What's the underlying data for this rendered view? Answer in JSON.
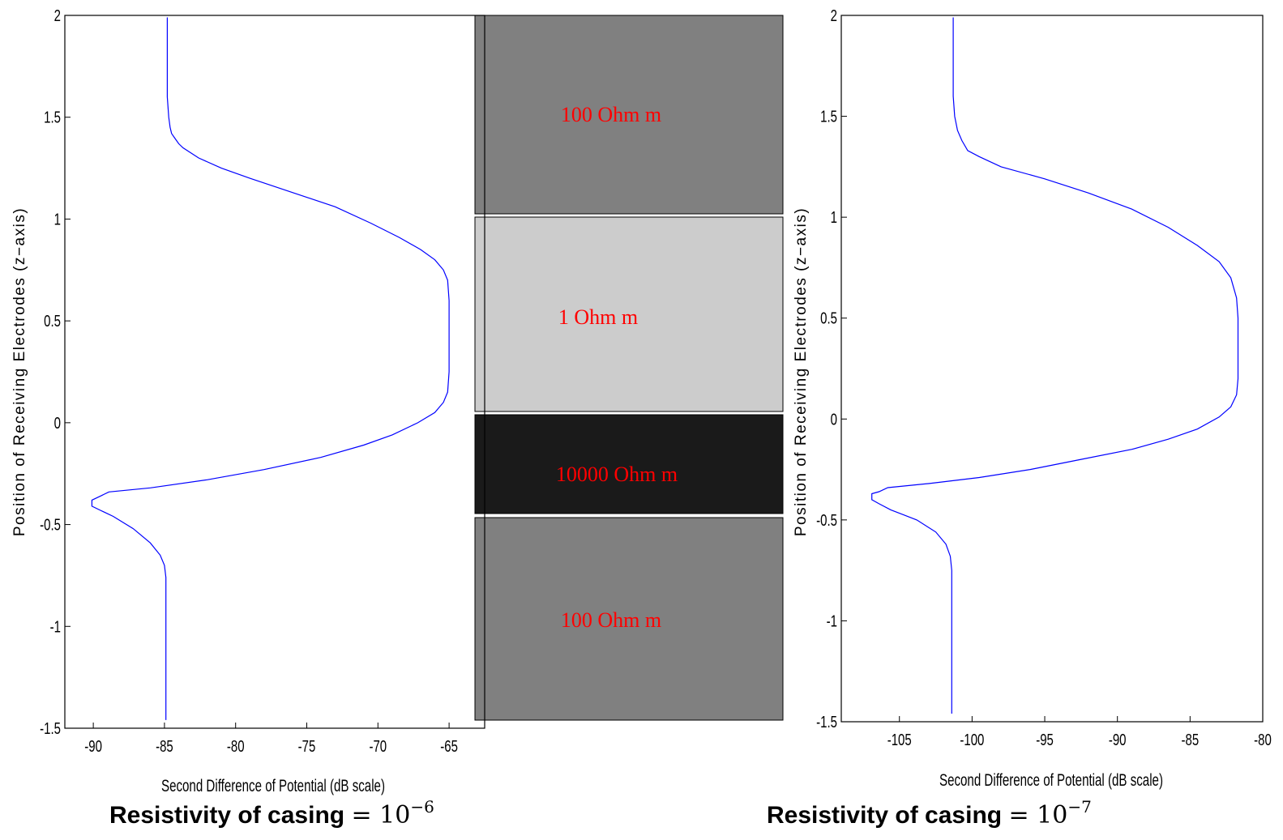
{
  "chart_data": [
    {
      "type": "line",
      "xlabel": "Second Difference of Potential (dB scale)",
      "ylabel": "Position of Receiving Electrodes (z−axis)",
      "xlim": [
        -92,
        -62.5
      ],
      "ylim": [
        -1.5,
        2
      ],
      "xticks": [
        "-90",
        "-85",
        "-80",
        "-75",
        "-70",
        "-65"
      ],
      "yticks": [
        "2",
        "1.5",
        "1",
        "0.5",
        "0",
        "-0.5",
        "-1",
        "-1.5"
      ],
      "grid": false,
      "series": [
        {
          "color": "#0000ff",
          "x": [
            -84.8,
            -84.8,
            -84.7,
            -84.6,
            -84.5,
            -84.3,
            -84.0,
            -83.7,
            -82.6,
            -81.0,
            -79.0,
            -76.0,
            -73.0,
            -70.5,
            -68.5,
            -67.0,
            -66.0,
            -65.4,
            -65.1,
            -65.0,
            -65.0,
            -65.0,
            -65.0,
            -65.1,
            -65.4,
            -66.0,
            -67.2,
            -69.0,
            -71.0,
            -74.0,
            -78.0,
            -82.0,
            -86.0,
            -88.9,
            -89.5,
            -90.1,
            -90.1,
            -89.5,
            -88.6,
            -87.2,
            -86.0,
            -85.3,
            -85.0,
            -84.9,
            -84.9,
            -84.9
          ],
          "y": [
            1.99,
            1.6,
            1.5,
            1.45,
            1.42,
            1.4,
            1.37,
            1.35,
            1.3,
            1.25,
            1.2,
            1.13,
            1.06,
            0.98,
            0.91,
            0.85,
            0.8,
            0.75,
            0.7,
            0.6,
            0.5,
            0.4,
            0.25,
            0.15,
            0.1,
            0.05,
            0.0,
            -0.06,
            -0.11,
            -0.17,
            -0.23,
            -0.28,
            -0.32,
            -0.34,
            -0.36,
            -0.38,
            -0.41,
            -0.43,
            -0.46,
            -0.52,
            -0.59,
            -0.65,
            -0.7,
            -0.76,
            -1.0,
            -1.46
          ]
        }
      ],
      "caption": "Resistivity of casing",
      "caption_math": "= 10",
      "caption_exp": "−6"
    },
    {
      "type": "line",
      "xlabel": "Second Difference of Potential (dB scale)",
      "ylabel": "Position of Receiving Electrodes (z−axis)",
      "xlim": [
        -109,
        -80
      ],
      "ylim": [
        -1.5,
        2
      ],
      "xticks": [
        "-105",
        "-100",
        "-95",
        "-90",
        "-85",
        "-80"
      ],
      "yticks": [
        "2",
        "1.5",
        "1",
        "0.5",
        "0",
        "-0.5",
        "-1",
        "-1.5"
      ],
      "grid": false,
      "series": [
        {
          "color": "#0000ff",
          "x": [
            -101.3,
            -101.3,
            -101.2,
            -101.0,
            -100.7,
            -100.3,
            -99.5,
            -98.0,
            -95.0,
            -92.0,
            -89.0,
            -86.5,
            -84.5,
            -83.0,
            -82.2,
            -81.8,
            -81.7,
            -81.7,
            -81.7,
            -81.8,
            -82.2,
            -83.0,
            -84.5,
            -86.5,
            -89.0,
            -92.5,
            -96.0,
            -99.5,
            -103.0,
            -105.8,
            -106.4,
            -106.9,
            -106.9,
            -106.4,
            -105.6,
            -103.8,
            -102.5,
            -101.8,
            -101.5,
            -101.4,
            -101.4,
            -101.4
          ],
          "y": [
            1.99,
            1.6,
            1.5,
            1.43,
            1.38,
            1.33,
            1.3,
            1.25,
            1.19,
            1.12,
            1.04,
            0.95,
            0.86,
            0.78,
            0.7,
            0.6,
            0.5,
            0.3,
            0.2,
            0.12,
            0.06,
            0.01,
            -0.05,
            -0.1,
            -0.15,
            -0.2,
            -0.25,
            -0.29,
            -0.32,
            -0.34,
            -0.36,
            -0.37,
            -0.4,
            -0.42,
            -0.45,
            -0.5,
            -0.56,
            -0.62,
            -0.68,
            -0.75,
            -1.0,
            -1.46
          ]
        }
      ],
      "caption": "Resistivity of casing",
      "caption_math": "= 10",
      "caption_exp": "−7"
    }
  ],
  "layers": [
    {
      "label": "100 Ohm m",
      "color": "#808080"
    },
    {
      "label": "1 Ohm m",
      "color": "#cccccc"
    },
    {
      "label": "10000 Ohm m",
      "color": "#1a1a1a"
    },
    {
      "label": "100 Ohm m",
      "color": "#808080"
    }
  ]
}
